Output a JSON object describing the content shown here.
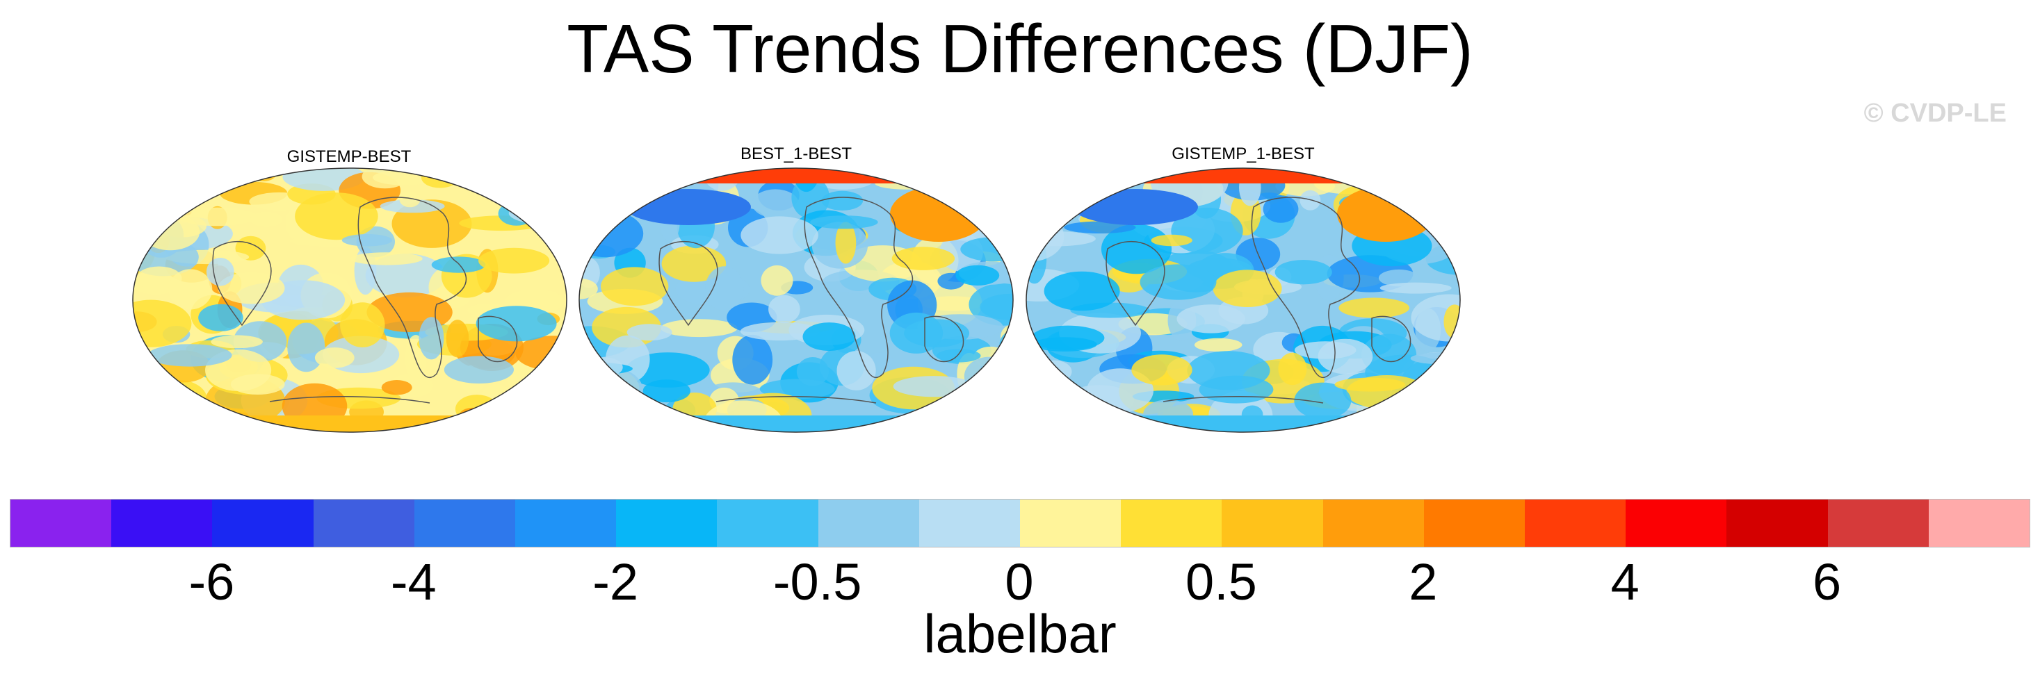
{
  "title": "TAS Trends Differences (DJF)",
  "watermark": "© CVDP-LE",
  "panels": [
    {
      "label": "GISTEMP-BEST",
      "bias": "warm"
    },
    {
      "label": "BEST_1-BEST",
      "bias": "cool"
    },
    {
      "label": "GISTEMP_1-BEST",
      "bias": "cool"
    }
  ],
  "labelbar": {
    "title": "labelbar",
    "colors": [
      "#8a22ee",
      "#3a0ff5",
      "#1a28f2",
      "#3f5ee0",
      "#2e78ec",
      "#1f93f7",
      "#08b6f7",
      "#3cc0f4",
      "#8ecdee",
      "#b8def3",
      "#fff49a",
      "#ffe035",
      "#ffc21a",
      "#ff9d0c",
      "#ff7a00",
      "#ff3d08",
      "#fb0003",
      "#d40000",
      "#d63a3a",
      "#ffaaaa"
    ],
    "tick_labels": [
      "-6",
      "-4",
      "-2",
      "-0.5",
      "0",
      "0.5",
      "2",
      "4",
      "6"
    ]
  }
}
